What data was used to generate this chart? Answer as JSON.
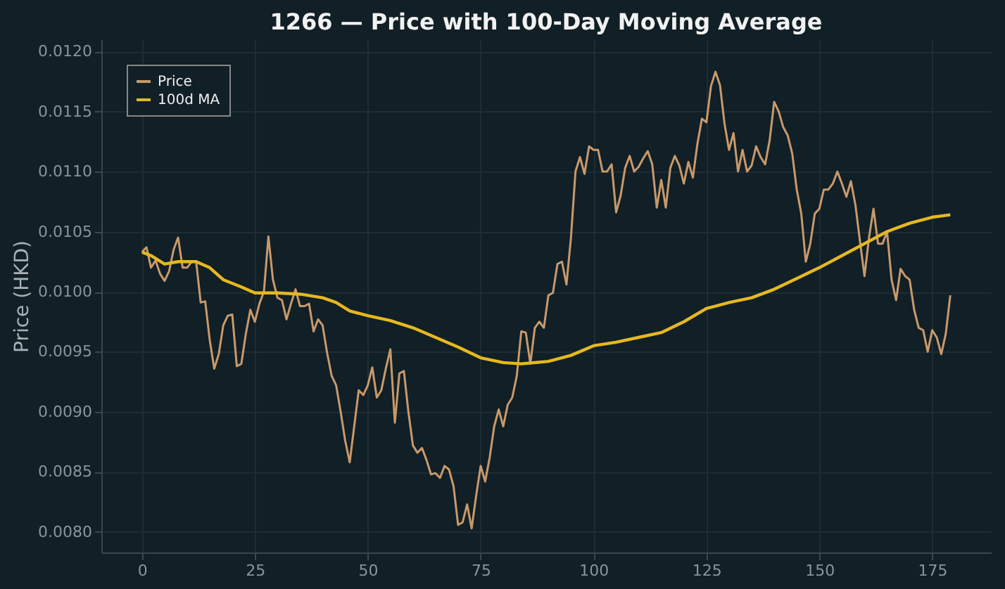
{
  "chart_data": {
    "type": "line",
    "title": "1266 — Price with 100-Day Moving Average",
    "ylabel": "Price (HKD)",
    "xlim": [
      -9,
      188
    ],
    "xticks": [
      0,
      25,
      50,
      75,
      100,
      125,
      150,
      175
    ],
    "ylim": [
      0.00783,
      0.0121
    ],
    "yticks": [
      {
        "value": 0.008,
        "label": "0.0080"
      },
      {
        "value": 0.0085,
        "label": "0.0085"
      },
      {
        "value": 0.009,
        "label": "0.0090"
      },
      {
        "value": 0.0095,
        "label": "0.0095"
      },
      {
        "value": 0.01,
        "label": "0.0100"
      },
      {
        "value": 0.0105,
        "label": "0.0105"
      },
      {
        "value": 0.011,
        "label": "0.0110"
      },
      {
        "value": 0.0115,
        "label": "0.0115"
      },
      {
        "value": 0.012,
        "label": "0.0120"
      }
    ],
    "grid": true,
    "legend": "top left",
    "series": [
      {
        "name": "Price",
        "color": "#c8996b",
        "x": [
          0,
          1,
          2,
          3,
          4,
          5,
          6,
          7,
          8,
          9,
          10,
          11,
          12,
          13,
          14,
          15,
          16,
          17,
          18,
          19,
          20,
          21,
          22,
          23,
          24,
          25,
          26,
          27,
          28,
          29,
          30,
          31,
          32,
          33,
          34,
          35,
          36,
          37,
          38,
          39,
          40,
          41,
          42,
          43,
          44,
          45,
          46,
          47,
          48,
          49,
          50,
          51,
          52,
          53,
          54,
          55,
          56,
          57,
          58,
          59,
          60,
          61,
          62,
          63,
          64,
          65,
          66,
          67,
          68,
          69,
          70,
          71,
          72,
          73,
          74,
          75,
          76,
          77,
          78,
          79,
          80,
          81,
          82,
          83,
          84,
          85,
          86,
          87,
          88,
          89,
          90,
          91,
          92,
          93,
          94,
          95,
          96,
          97,
          98,
          99,
          100,
          101,
          102,
          103,
          104,
          105,
          106,
          107,
          108,
          109,
          110,
          111,
          112,
          113,
          114,
          115,
          116,
          117,
          118,
          119,
          120,
          121,
          122,
          123,
          124,
          125,
          126,
          127,
          128,
          129,
          130,
          131,
          132,
          133,
          134,
          135,
          136,
          137,
          138,
          139,
          140,
          141,
          142,
          143,
          144,
          145,
          146,
          147,
          148,
          149,
          150,
          151,
          152,
          153,
          154,
          155,
          156,
          157,
          158,
          159,
          160,
          161,
          162,
          163,
          164,
          165,
          166,
          167,
          168,
          169,
          170,
          171,
          172,
          173,
          174,
          175,
          176,
          177,
          178,
          179
        ],
        "values": [
          0.01033,
          0.01037,
          0.0102,
          0.01026,
          0.01015,
          0.01009,
          0.01017,
          0.01035,
          0.01045,
          0.0102,
          0.0102,
          0.01025,
          0.01025,
          0.00991,
          0.00992,
          0.0096,
          0.00936,
          0.00948,
          0.00972,
          0.0098,
          0.00981,
          0.00938,
          0.0094,
          0.00965,
          0.00985,
          0.00975,
          0.0099,
          0.01,
          0.01046,
          0.0101,
          0.00995,
          0.00993,
          0.00977,
          0.0099,
          0.01002,
          0.00988,
          0.00988,
          0.0099,
          0.00967,
          0.00977,
          0.00972,
          0.00949,
          0.0093,
          0.00922,
          0.009,
          0.00876,
          0.00858,
          0.00888,
          0.00918,
          0.00914,
          0.00922,
          0.00937,
          0.00912,
          0.00918,
          0.00936,
          0.00952,
          0.00891,
          0.00932,
          0.00934,
          0.009,
          0.00872,
          0.00866,
          0.0087,
          0.0086,
          0.00848,
          0.00849,
          0.00845,
          0.00855,
          0.00852,
          0.00838,
          0.00806,
          0.00808,
          0.00823,
          0.00803,
          0.0083,
          0.00855,
          0.00842,
          0.00862,
          0.00888,
          0.00902,
          0.00888,
          0.00906,
          0.00912,
          0.0093,
          0.00967,
          0.00966,
          0.0094,
          0.0097,
          0.00975,
          0.0097,
          0.00997,
          0.00999,
          0.01023,
          0.01025,
          0.01006,
          0.01045,
          0.011,
          0.01112,
          0.01098,
          0.01121,
          0.01118,
          0.01118,
          0.011,
          0.011,
          0.01106,
          0.01066,
          0.0108,
          0.01103,
          0.01113,
          0.011,
          0.01104,
          0.01111,
          0.01117,
          0.01106,
          0.0107,
          0.01093,
          0.0107,
          0.01103,
          0.01113,
          0.01105,
          0.0109,
          0.01108,
          0.01095,
          0.01123,
          0.01144,
          0.01141,
          0.01171,
          0.01183,
          0.01172,
          0.0114,
          0.01118,
          0.01132,
          0.011,
          0.01118,
          0.011,
          0.01105,
          0.01121,
          0.01112,
          0.01106,
          0.01126,
          0.01158,
          0.0115,
          0.01137,
          0.0113,
          0.01115,
          0.01085,
          0.01065,
          0.01025,
          0.0104,
          0.01065,
          0.01069,
          0.01085,
          0.01085,
          0.0109,
          0.011,
          0.0109,
          0.01079,
          0.01092,
          0.01072,
          0.01042,
          0.01013,
          0.01045,
          0.01069,
          0.0104,
          0.0104,
          0.0105,
          0.0101,
          0.00993,
          0.01019,
          0.01013,
          0.0101,
          0.00985,
          0.0097,
          0.00968,
          0.0095,
          0.00968,
          0.00962,
          0.00948,
          0.00965,
          0.00997
        ]
      },
      {
        "name": "100d MA",
        "color": "#e6b820",
        "x": [
          0,
          2,
          5,
          8,
          12,
          15,
          18,
          22,
          25,
          30,
          35,
          40,
          43,
          46,
          50,
          55,
          60,
          65,
          70,
          75,
          80,
          84,
          90,
          95,
          100,
          105,
          110,
          115,
          120,
          125,
          130,
          135,
          140,
          145,
          150,
          155,
          160,
          165,
          170,
          175,
          179
        ],
        "values": [
          0.01033,
          0.0103,
          0.01023,
          0.01025,
          0.01025,
          0.0102,
          0.0101,
          0.01004,
          0.00999,
          0.00999,
          0.00998,
          0.00995,
          0.00991,
          0.00984,
          0.0098,
          0.00976,
          0.0097,
          0.00962,
          0.00954,
          0.00945,
          0.00941,
          0.0094,
          0.00942,
          0.00947,
          0.00955,
          0.00958,
          0.00962,
          0.00966,
          0.00975,
          0.00986,
          0.00991,
          0.00995,
          0.01002,
          0.01011,
          0.0102,
          0.0103,
          0.0104,
          0.0105,
          0.01057,
          0.01062,
          0.01064
        ]
      }
    ]
  }
}
